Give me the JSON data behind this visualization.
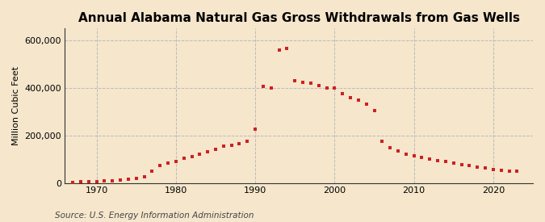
{
  "title": "Annual Alabama Natural Gas Gross Withdrawals from Gas Wells",
  "ylabel": "Million Cubic Feet",
  "source": "Source: U.S. Energy Information Administration",
  "background_color": "#f5e6cc",
  "dot_color": "#cc2222",
  "years": [
    1967,
    1968,
    1969,
    1970,
    1971,
    1972,
    1973,
    1974,
    1975,
    1976,
    1977,
    1978,
    1979,
    1980,
    1981,
    1982,
    1983,
    1984,
    1985,
    1986,
    1987,
    1988,
    1989,
    1990,
    1991,
    1992,
    1993,
    1994,
    1995,
    1996,
    1997,
    1998,
    1999,
    2000,
    2001,
    2002,
    2003,
    2004,
    2005,
    2006,
    2007,
    2008,
    2009,
    2010,
    2011,
    2012,
    2013,
    2014,
    2015,
    2016,
    2017,
    2018,
    2019,
    2020,
    2021,
    2022,
    2023
  ],
  "values": [
    3000,
    4000,
    5000,
    6000,
    8000,
    9000,
    11000,
    14000,
    18000,
    26000,
    50000,
    72000,
    85000,
    90000,
    105000,
    110000,
    120000,
    130000,
    140000,
    155000,
    160000,
    165000,
    175000,
    225000,
    405000,
    400000,
    560000,
    565000,
    430000,
    425000,
    420000,
    410000,
    400000,
    400000,
    375000,
    360000,
    350000,
    330000,
    305000,
    175000,
    148000,
    133000,
    120000,
    115000,
    108000,
    102000,
    95000,
    90000,
    83000,
    77000,
    72000,
    66000,
    62000,
    58000,
    54000,
    51000,
    48000
  ],
  "xlim": [
    1966,
    2025
  ],
  "ylim": [
    0,
    650000
  ],
  "yticks": [
    0,
    200000,
    400000,
    600000
  ],
  "ytick_labels": [
    "0",
    "200,000",
    "400,000",
    "600,000"
  ],
  "xticks": [
    1970,
    1980,
    1990,
    2000,
    2010,
    2020
  ],
  "grid_color": "#bbbbbb",
  "title_fontsize": 11,
  "label_fontsize": 8,
  "tick_fontsize": 8,
  "source_fontsize": 7.5
}
